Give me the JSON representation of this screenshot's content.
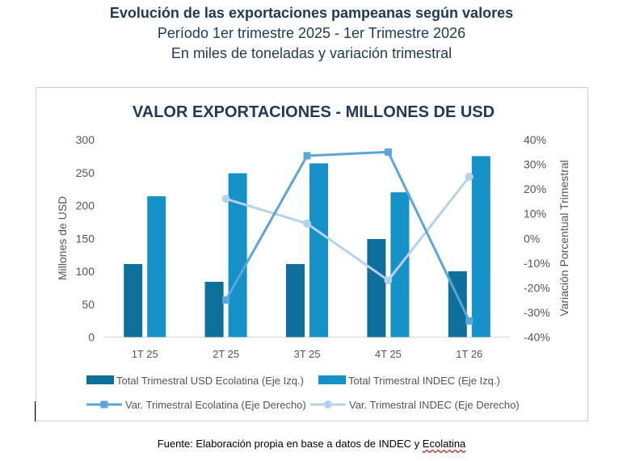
{
  "header": {
    "title": "Evolución de las exportaciones pampeanas según valores",
    "subtitle1": "Período 1er trimestre 2025 - 1er Trimestre 2026",
    "subtitle2": "En miles de toneladas y variación trimestral"
  },
  "source": {
    "prefix": "Fuente: Elaboración propia en base a datos de INDEC y ",
    "tail": "Ecolatina"
  },
  "colors": {
    "ecolatina_bar": "#0e6f9a",
    "indec_bar": "#1591c8",
    "ecolatina_line": "#5aa6da",
    "indec_line": "#b4d2ea",
    "title": "#1f3a57",
    "axis_text": "#555555"
  },
  "chart_data": {
    "type": "bar",
    "title": "VALOR EXPORTACIONES - MILLONES DE USD",
    "categories": [
      "1T 25",
      "2T 25",
      "3T 25",
      "4T 25",
      "1T 26"
    ],
    "ylabel": "Millones de USD",
    "y2label": "Variación Porcentual Trimestral",
    "ylim": [
      0,
      300
    ],
    "yticks": [
      "0",
      "50",
      "100",
      "150",
      "200",
      "250",
      "300"
    ],
    "y2lim": [
      -40,
      40
    ],
    "y2ticks": [
      "-40%",
      "-30%",
      "-20%",
      "-10%",
      "0%",
      "10%",
      "20%",
      "30%",
      "40%"
    ],
    "grid": false,
    "legend_position": "bottom",
    "series": [
      {
        "name": "Total Trimestral USD Ecolatina (Eje Izq.)",
        "type": "bar",
        "axis": "left",
        "values": [
          111,
          84,
          111,
          149,
          100
        ]
      },
      {
        "name": "Total Trimestral INDEC (Eje Izq.)",
        "type": "bar",
        "axis": "left",
        "values": [
          214,
          249,
          264,
          220,
          275
        ]
      },
      {
        "name": "Var. Trimestral Ecolatina (Eje Derecho)",
        "type": "line",
        "marker": "square",
        "axis": "right",
        "values": [
          null,
          -25,
          33.5,
          35,
          -33.5
        ]
      },
      {
        "name": "Var. Trimestral INDEC (Eje Derecho)",
        "type": "line",
        "marker": "circle",
        "axis": "right",
        "values": [
          null,
          16,
          6,
          -17,
          25
        ]
      }
    ]
  }
}
